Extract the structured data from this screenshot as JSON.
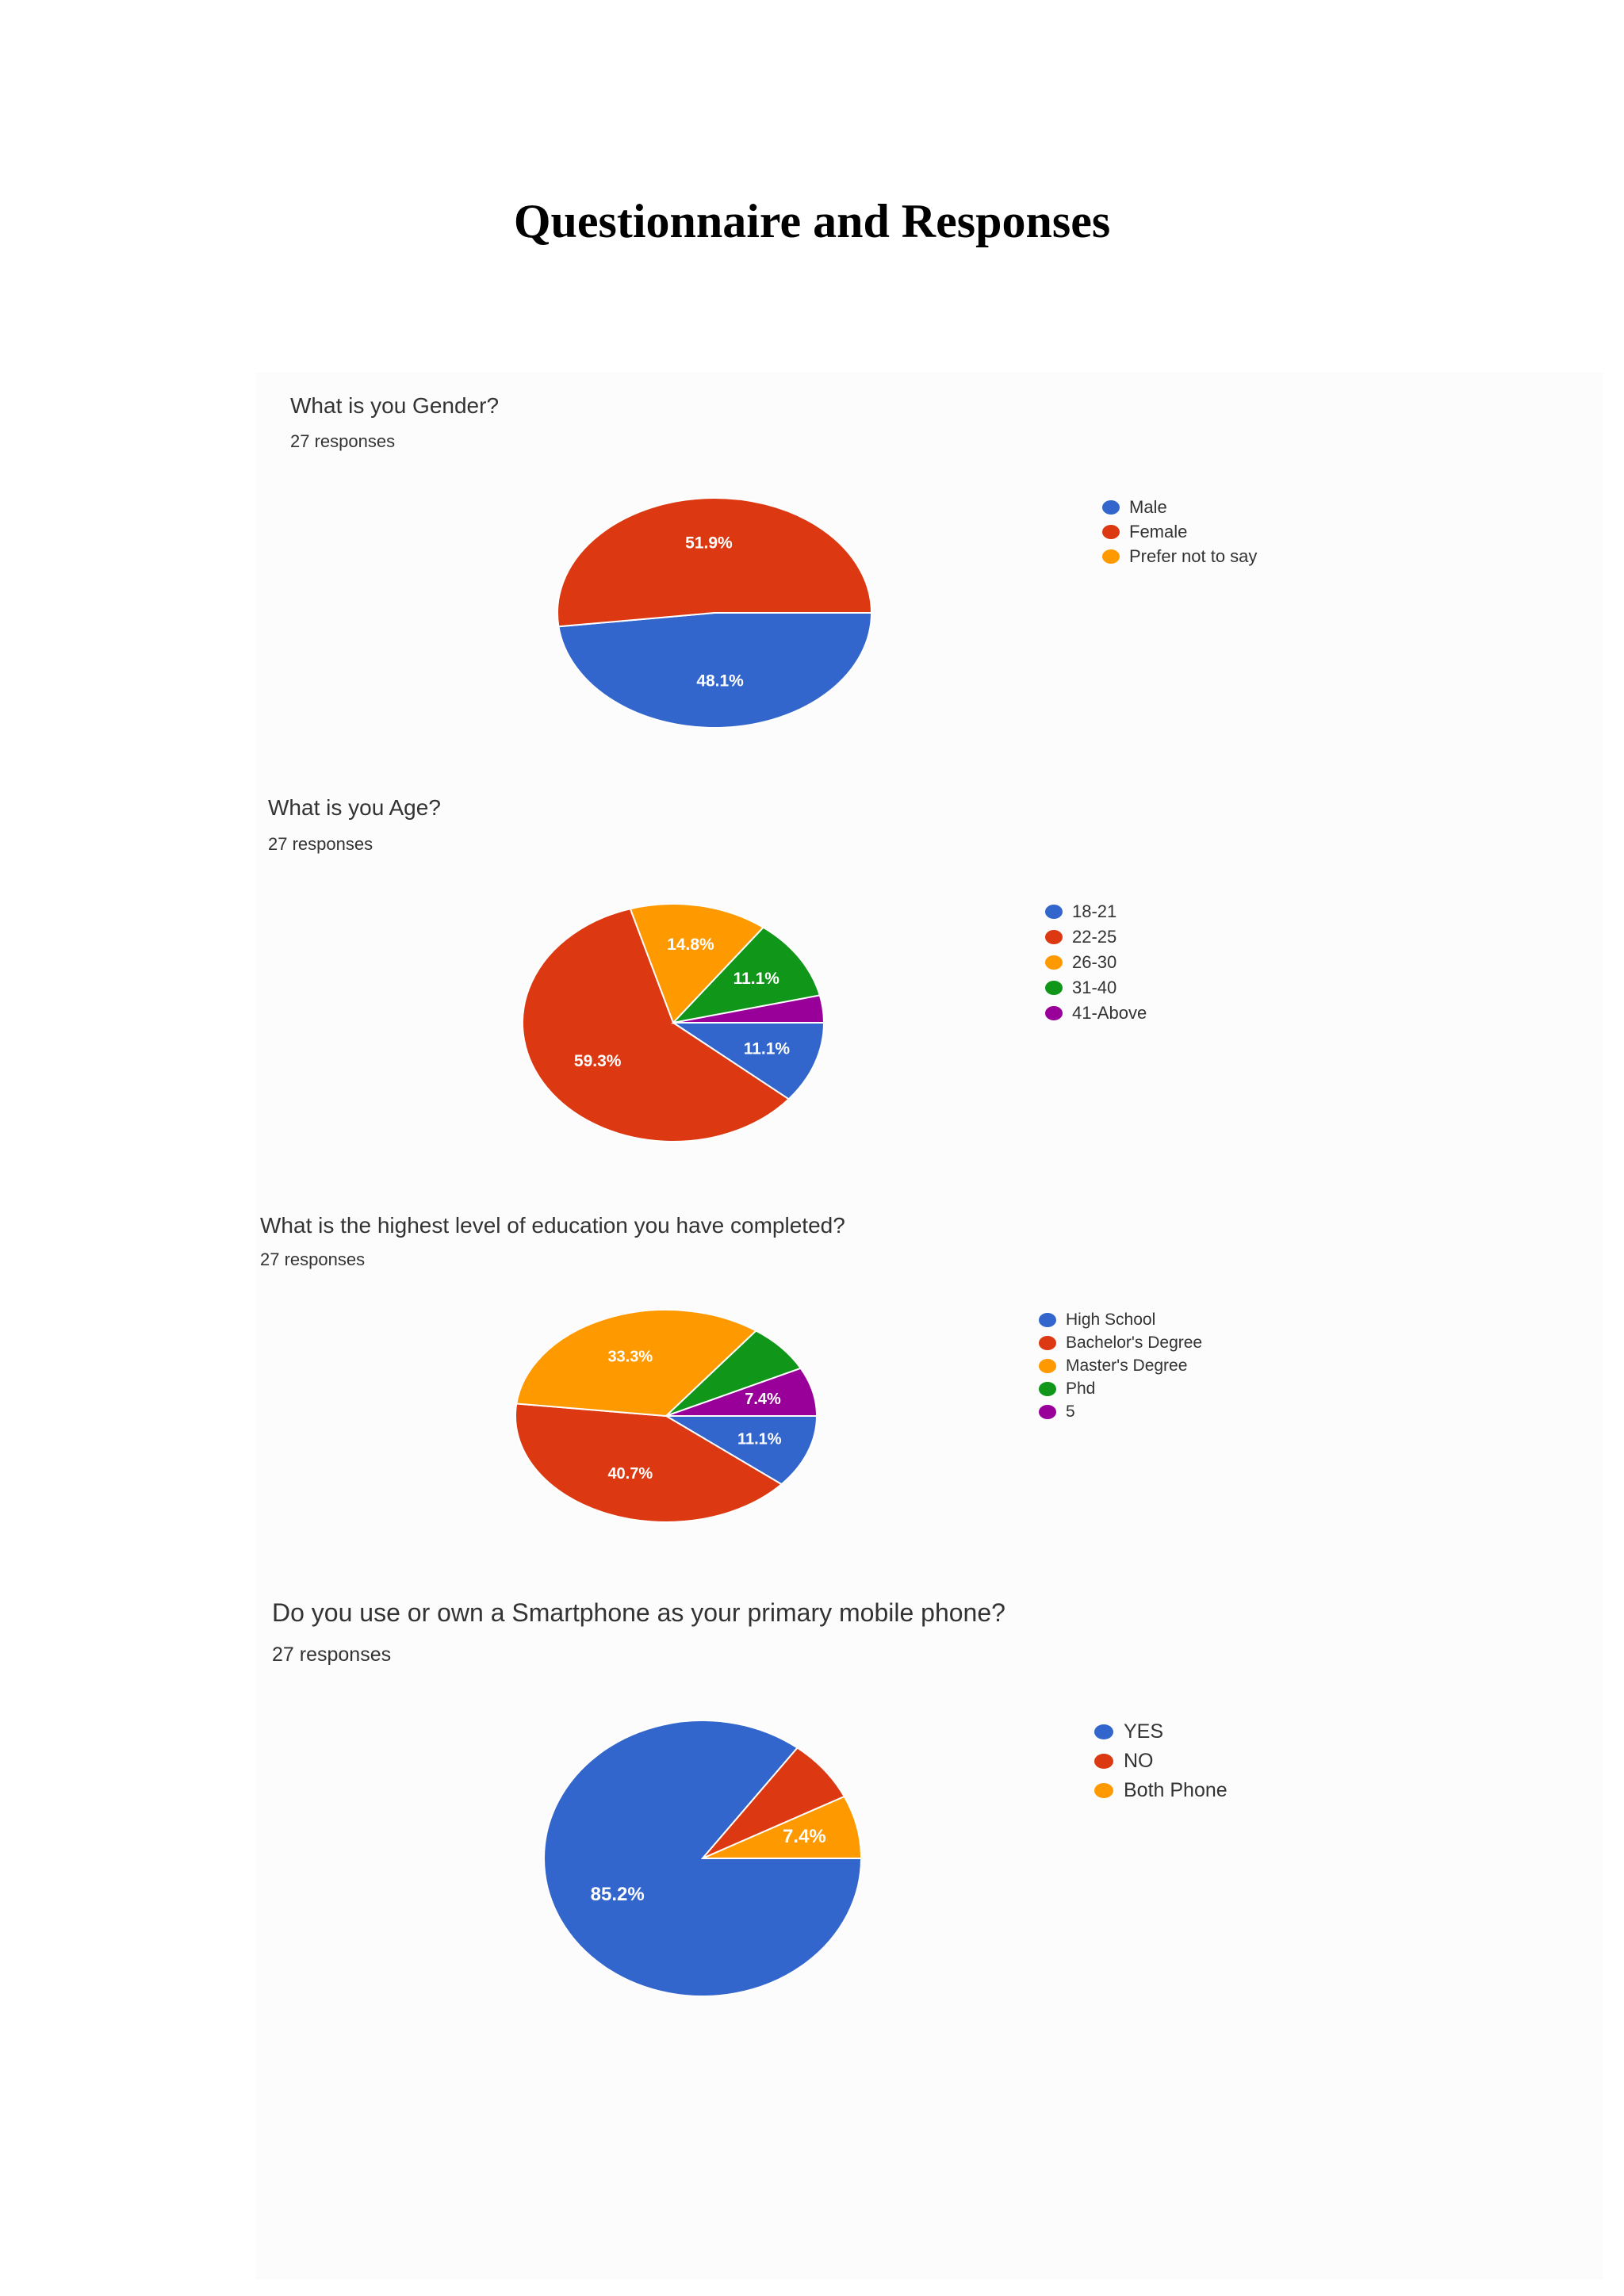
{
  "page": {
    "title": "Questionnaire and Responses"
  },
  "charts": [
    {
      "question": "What is you Gender?",
      "responses": "27 responses",
      "colors": [
        "#3366cc",
        "#dc3912",
        "#ff9900"
      ],
      "chart_data": {
        "type": "pie",
        "categories": [
          "Male",
          "Female",
          "Prefer not to say"
        ],
        "values": [
          48.1,
          51.9,
          0
        ],
        "data_labels": [
          "48.1%",
          "51.9%",
          ""
        ],
        "legend_position": "right"
      }
    },
    {
      "question": "What is you Age?",
      "responses": "27 responses",
      "colors": [
        "#3366cc",
        "#dc3912",
        "#ff9900",
        "#109618",
        "#990099"
      ],
      "chart_data": {
        "type": "pie",
        "categories": [
          "18-21",
          "22-25",
          "26-30",
          "31-40",
          "41-Above"
        ],
        "values": [
          11.1,
          59.3,
          14.8,
          11.1,
          3.7
        ],
        "data_labels": [
          "11.1%",
          "59.3%",
          "14.8%",
          "11.1%",
          ""
        ],
        "legend_position": "right"
      }
    },
    {
      "question": "What is the highest level of education you have completed?",
      "responses": "27 responses",
      "colors": [
        "#3366cc",
        "#dc3912",
        "#ff9900",
        "#109618",
        "#990099"
      ],
      "chart_data": {
        "type": "pie",
        "categories": [
          "High School",
          "Bachelor's Degree",
          "Master's Degree",
          "Phd",
          "5"
        ],
        "values": [
          11.1,
          40.7,
          33.3,
          7.4,
          7.4
        ],
        "data_labels": [
          "11.1%",
          "40.7%",
          "33.3%",
          "",
          "7.4%"
        ],
        "legend_position": "right"
      }
    },
    {
      "question": "Do you use or own a Smartphone as your primary mobile phone?",
      "responses": "27 responses",
      "colors": [
        "#3366cc",
        "#dc3912",
        "#ff9900"
      ],
      "chart_data": {
        "type": "pie",
        "categories": [
          "YES",
          "NO",
          "Both Phone"
        ],
        "values": [
          85.2,
          7.4,
          7.4
        ],
        "data_labels": [
          "85.2%",
          "",
          "7.4%"
        ],
        "legend_position": "right"
      }
    }
  ]
}
